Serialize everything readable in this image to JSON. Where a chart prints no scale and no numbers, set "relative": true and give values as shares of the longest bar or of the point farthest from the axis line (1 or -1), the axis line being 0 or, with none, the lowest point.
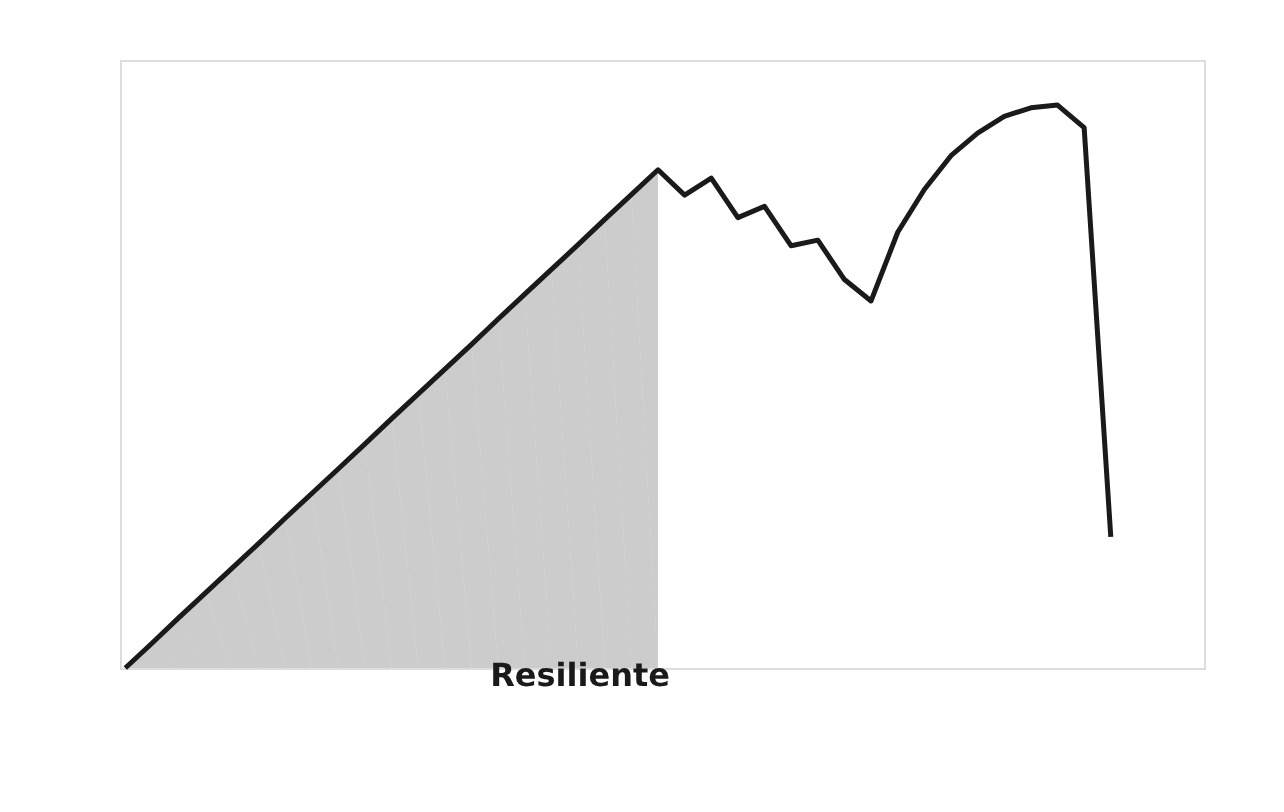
{
  "chart_data": {
    "type": "line",
    "relative": true,
    "tick_labels": false,
    "grid": false,
    "marker": "none",
    "line_style": "solid",
    "categories": [
      null,
      null,
      null,
      null,
      null,
      null,
      null,
      null,
      null,
      null,
      null,
      null,
      null,
      null,
      null,
      null,
      null,
      null,
      null,
      null,
      null,
      null,
      null,
      null,
      null,
      null,
      null,
      null,
      null,
      null,
      null,
      null,
      null,
      null,
      null,
      null,
      null,
      null,
      null,
      null,
      null
    ],
    "annotations": [
      "Resiliente"
    ],
    "series": [
      {
        "type": "area",
        "color": "#9a9a9a",
        "values": [
          0,
          0.044,
          0.089,
          0.133,
          0.177,
          0.221,
          0.266,
          0.31,
          0.354,
          0.398,
          0.443,
          0.487,
          0.531,
          0.575,
          0.62,
          0.664,
          0.708,
          0.752,
          0.797,
          0.841,
          0.885,
          null,
          null,
          null,
          null,
          null,
          null,
          null,
          null,
          null,
          null,
          null,
          null,
          null,
          null,
          null,
          null,
          null,
          null,
          null,
          null
        ]
      },
      {
        "color": "#1a1a1a",
        "values": [
          0,
          0.044,
          0.089,
          0.133,
          0.177,
          0.221,
          0.266,
          0.31,
          0.354,
          0.398,
          0.443,
          0.487,
          0.531,
          0.575,
          0.62,
          0.664,
          0.708,
          0.752,
          0.797,
          0.841,
          0.885,
          0.84,
          0.87,
          0.8,
          0.82,
          0.75,
          0.76,
          0.69,
          0.652,
          0.774,
          0.85,
          0.91,
          0.95,
          0.98,
          0.995,
          1.0,
          0.96,
          0.233,
          null,
          null,
          null
        ]
      }
    ]
  }
}
